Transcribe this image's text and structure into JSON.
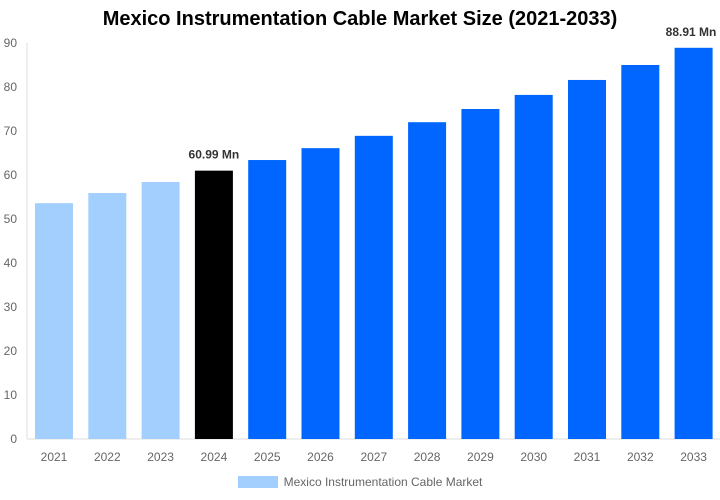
{
  "chart_data": {
    "type": "bar",
    "title": "Mexico Instrumentation Cable Market Size (2021-2033)",
    "categories": [
      "2021",
      "2022",
      "2023",
      "2024",
      "2025",
      "2026",
      "2027",
      "2028",
      "2029",
      "2030",
      "2031",
      "2032",
      "2033"
    ],
    "series": [
      {
        "name": "Mexico Instrumentation Cable Market",
        "values": [
          53.6,
          55.9,
          58.4,
          60.99,
          63.4,
          66.1,
          68.9,
          72.0,
          75.0,
          78.2,
          81.6,
          85.0,
          88.91
        ]
      }
    ],
    "bar_colors": [
      "#a3cfff",
      "#a3cfff",
      "#a3cfff",
      "#000000",
      "#0066ff",
      "#0066ff",
      "#0066ff",
      "#0066ff",
      "#0066ff",
      "#0066ff",
      "#0066ff",
      "#0066ff",
      "#0066ff"
    ],
    "data_labels": {
      "3": "60.99 Mn",
      "12": "88.91 Mn"
    },
    "yticks": [
      0,
      10,
      20,
      30,
      40,
      50,
      60,
      70,
      80,
      90
    ],
    "ylim": [
      0,
      90
    ],
    "xlabel": "",
    "ylabel": "",
    "grid": false,
    "legend_position": "bottom",
    "legend_color": "#a3cfff"
  }
}
